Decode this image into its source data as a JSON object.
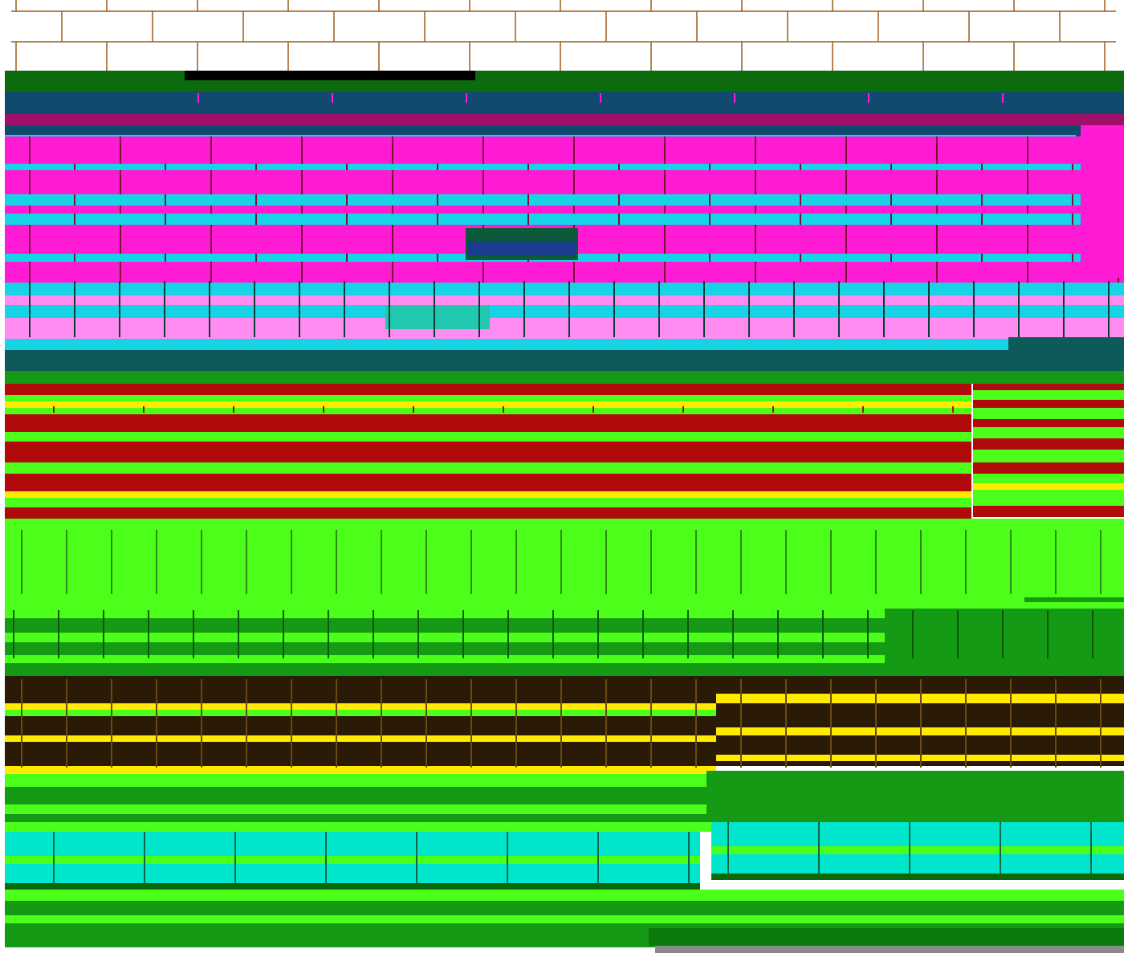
{
  "palette": {
    "brick_line": "#9b5a1a",
    "dark_green": "#0c6b0c",
    "navy": "#0f4a6e",
    "magenta": "#ff1ad4",
    "cyan": "#16d4e6",
    "pink": "#ff8cf0",
    "teal": "#0e5a5a",
    "red": "#b00a0a",
    "yellow": "#ffea00",
    "lime": "#4cff1a",
    "green": "#149a14",
    "dark_brown": "#2a1a06",
    "aqua": "#00e6cc",
    "gray": "#8a8a8a",
    "black": "#000000"
  },
  "icons": [
    "brick-wall-pattern",
    "glitch-block"
  ]
}
